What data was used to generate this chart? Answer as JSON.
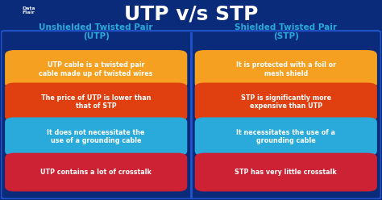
{
  "title": "UTP v/s STP",
  "bg_color": "#0a2a7a",
  "title_color": "#ffffff",
  "header_left": "Unshielded Twisted Pair\n(UTP)",
  "header_right": "Shielded Twisted Pair\n(STP)",
  "header_color": "#29aadb",
  "utp_items": [
    "UTP cable is a twisted pair\ncable made up of twisted wires",
    "The price of UTP is lower than\nthat of STP",
    "It does not necessitate the\nuse of a grounding cable",
    "UTP contains a lot of crosstalk"
  ],
  "stp_items": [
    "It is protected with a foil or\nmesh shield",
    "STP is significantly more\nexpensive than UTP",
    "It necessitates the use of a\ngrounding cable",
    "STP has very little crosstalk"
  ],
  "box_colors": [
    "#f5a020",
    "#e04010",
    "#29aadb",
    "#cc2233"
  ],
  "text_color": "#ffffff",
  "divider_color": "#2255cc"
}
